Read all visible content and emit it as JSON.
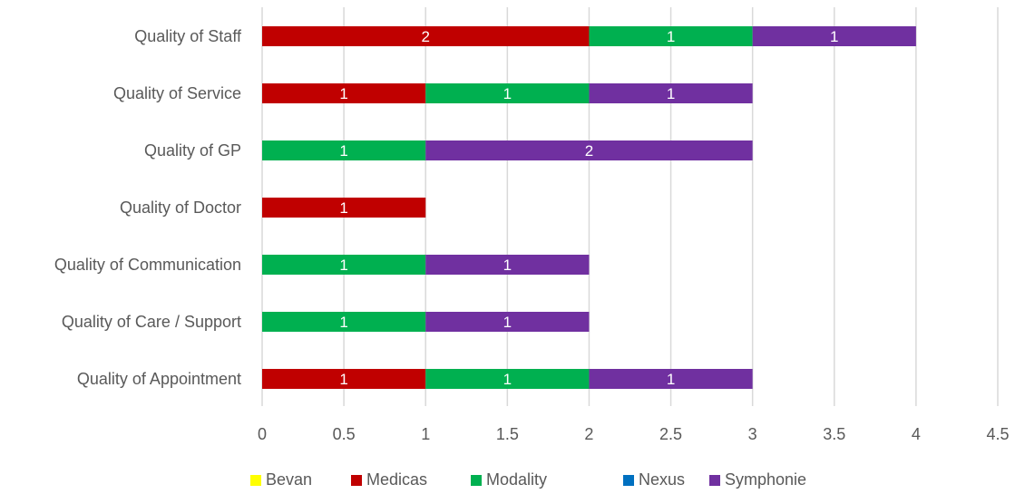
{
  "chart_data": {
    "type": "bar",
    "orientation": "horizontal",
    "stacked": true,
    "categories": [
      "Quality of Staff",
      "Quality of Service",
      "Quality of GP",
      "Quality of Doctor",
      "Quality of Communication",
      "Quality of Care / Support",
      "Quality of Appointment"
    ],
    "series": [
      {
        "name": "Bevan",
        "color": "#ffff00",
        "values": [
          0,
          0,
          0,
          0,
          0,
          0,
          0
        ]
      },
      {
        "name": "Medicas",
        "color": "#c00000",
        "values": [
          2,
          1,
          0,
          1,
          0,
          0,
          1
        ]
      },
      {
        "name": "Modality",
        "color": "#00b050",
        "values": [
          1,
          1,
          1,
          0,
          1,
          1,
          1
        ]
      },
      {
        "name": "Nexus",
        "color": "#0070c0",
        "values": [
          0,
          0,
          0,
          0,
          0,
          0,
          0
        ]
      },
      {
        "name": "Symphonie",
        "color": "#7030a0",
        "values": [
          1,
          1,
          2,
          0,
          1,
          1,
          1
        ]
      }
    ],
    "xlim": [
      0,
      4.5
    ],
    "xticks": [
      "0",
      "0.5",
      "1",
      "1.5",
      "2",
      "2.5",
      "3",
      "3.5",
      "4",
      "4.5"
    ],
    "xtick_values": [
      0,
      0.5,
      1,
      1.5,
      2,
      2.5,
      3,
      3.5,
      4,
      4.5
    ],
    "grid": "vertical",
    "legend_position": "bottom",
    "data_labels": true
  }
}
